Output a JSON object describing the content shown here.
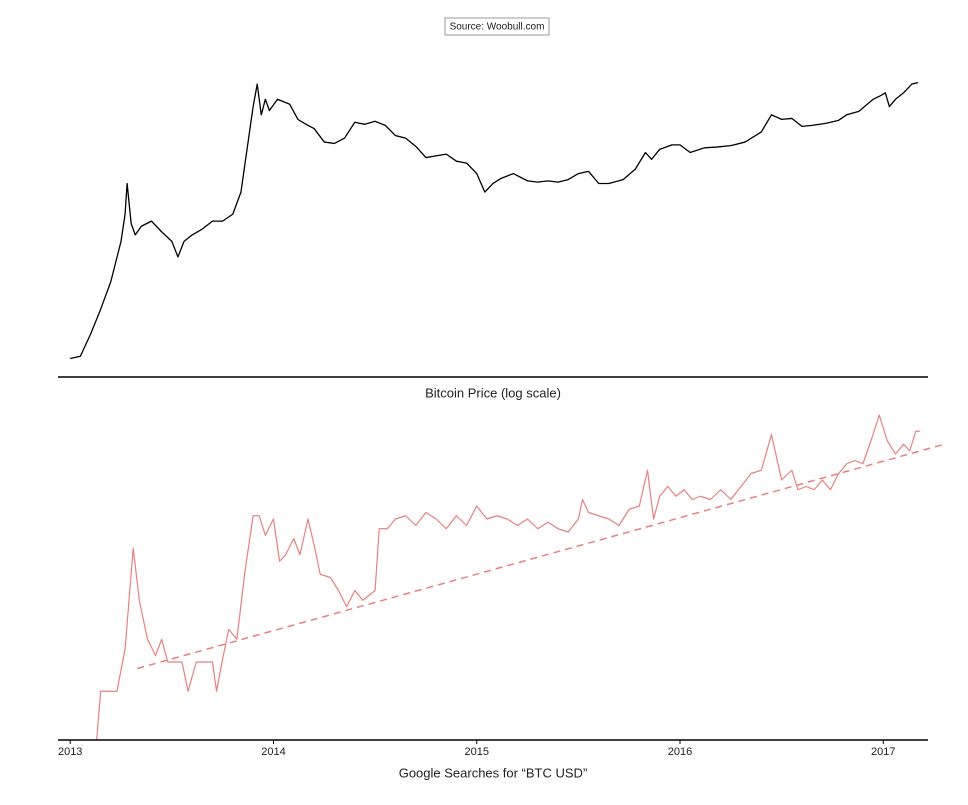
{
  "source": "Source: Woobull.com",
  "chart_data": [
    {
      "type": "line",
      "xlabel": "Bitcoin Price (log scale)",
      "log_y": true,
      "color": "#000000",
      "xlim": [
        2012.94,
        2017.22
      ],
      "ylim": [
        10,
        2000
      ],
      "x": [
        2013.0,
        2013.05,
        2013.1,
        2013.15,
        2013.2,
        2013.25,
        2013.27,
        2013.28,
        2013.3,
        2013.32,
        2013.35,
        2013.4,
        2013.45,
        2013.5,
        2013.53,
        2013.56,
        2013.6,
        2013.65,
        2013.7,
        2013.75,
        2013.8,
        2013.84,
        2013.87,
        2013.9,
        2013.92,
        2013.94,
        2013.96,
        2013.98,
        2014.02,
        2014.08,
        2014.12,
        2014.16,
        2014.2,
        2014.25,
        2014.3,
        2014.35,
        2014.4,
        2014.45,
        2014.5,
        2014.55,
        2014.6,
        2014.65,
        2014.7,
        2014.75,
        2014.8,
        2014.85,
        2014.9,
        2014.95,
        2015.0,
        2015.04,
        2015.08,
        2015.12,
        2015.18,
        2015.25,
        2015.3,
        2015.35,
        2015.4,
        2015.45,
        2015.5,
        2015.55,
        2015.6,
        2015.65,
        2015.72,
        2015.78,
        2015.83,
        2015.86,
        2015.9,
        2015.96,
        2016.0,
        2016.05,
        2016.12,
        2016.18,
        2016.25,
        2016.32,
        2016.4,
        2016.45,
        2016.5,
        2016.55,
        2016.6,
        2016.65,
        2016.72,
        2016.78,
        2016.82,
        2016.88,
        2016.95,
        2016.99,
        2017.01,
        2017.03,
        2017.06,
        2017.1,
        2017.14,
        2017.17
      ],
      "values": [
        13.5,
        14,
        20,
        30,
        47,
        90,
        140,
        230,
        120,
        100,
        115,
        125,
        105,
        90,
        70,
        90,
        100,
        110,
        125,
        125,
        140,
        200,
        400,
        800,
        1150,
        700,
        900,
        750,
        900,
        830,
        650,
        600,
        560,
        450,
        440,
        480,
        620,
        600,
        630,
        590,
        500,
        480,
        420,
        350,
        360,
        370,
        330,
        320,
        270,
        200,
        230,
        250,
        270,
        240,
        235,
        240,
        235,
        245,
        270,
        280,
        230,
        230,
        245,
        290,
        380,
        340,
        400,
        430,
        430,
        380,
        410,
        415,
        425,
        450,
        530,
        700,
        650,
        660,
        580,
        590,
        610,
        640,
        700,
        740,
        900,
        960,
        1000,
        800,
        900,
        1000,
        1150,
        1180
      ]
    },
    {
      "type": "line",
      "xlabel": "Google Searches for “BTC USD”",
      "color": "#e88080",
      "xlim": [
        2012.94,
        2017.22
      ],
      "ylim": [
        0,
        100
      ],
      "xticks": [
        2013,
        2014,
        2015,
        2016,
        2017
      ],
      "x": [
        2013.13,
        2013.15,
        2013.23,
        2013.27,
        2013.31,
        2013.34,
        2013.38,
        2013.42,
        2013.45,
        2013.48,
        2013.55,
        2013.58,
        2013.62,
        2013.7,
        2013.72,
        2013.75,
        2013.78,
        2013.82,
        2013.86,
        2013.9,
        2013.93,
        2013.96,
        2014.0,
        2014.03,
        2014.06,
        2014.1,
        2014.13,
        2014.17,
        2014.2,
        2014.23,
        2014.28,
        2014.32,
        2014.36,
        2014.4,
        2014.44,
        2014.5,
        2014.52,
        2014.56,
        2014.6,
        2014.65,
        2014.7,
        2014.75,
        2014.8,
        2014.85,
        2014.9,
        2014.95,
        2015.0,
        2015.05,
        2015.1,
        2015.15,
        2015.2,
        2015.25,
        2015.3,
        2015.35,
        2015.4,
        2015.45,
        2015.5,
        2015.52,
        2015.55,
        2015.6,
        2015.65,
        2015.7,
        2015.75,
        2015.8,
        2015.84,
        2015.87,
        2015.9,
        2015.94,
        2015.98,
        2016.02,
        2016.06,
        2016.1,
        2016.15,
        2016.2,
        2016.25,
        2016.3,
        2016.35,
        2016.4,
        2016.45,
        2016.5,
        2016.55,
        2016.58,
        2016.62,
        2016.66,
        2016.7,
        2016.74,
        2016.78,
        2016.82,
        2016.86,
        2016.9,
        2016.95,
        2016.98,
        2017.02,
        2017.06,
        2017.1,
        2017.13,
        2017.16,
        2017.18
      ],
      "values": [
        0,
        15,
        15,
        28,
        59,
        43,
        31,
        26,
        31,
        24,
        24,
        15,
        24,
        24,
        15,
        25,
        34,
        31,
        52,
        69,
        69,
        63,
        68,
        55,
        57,
        62,
        57,
        68,
        60,
        51,
        50,
        46,
        41,
        46,
        43,
        46,
        65,
        65,
        68,
        69,
        66,
        70,
        68,
        65,
        69,
        66,
        72,
        68,
        69,
        68,
        66,
        68,
        65,
        67,
        65,
        64,
        68,
        74,
        70,
        69,
        68,
        66,
        71,
        72,
        83,
        68,
        75,
        78,
        75,
        77,
        74,
        75,
        74,
        77,
        74,
        78,
        82,
        83,
        94,
        80,
        83,
        77,
        78,
        77,
        80,
        77,
        82,
        85,
        86,
        85,
        94,
        100,
        92,
        88,
        91,
        89,
        95,
        95
      ],
      "trend": {
        "x": [
          2013.33,
          2017.3
        ],
        "values": [
          22,
          91
        ],
        "color": "#e88080",
        "dashed": true
      }
    }
  ]
}
